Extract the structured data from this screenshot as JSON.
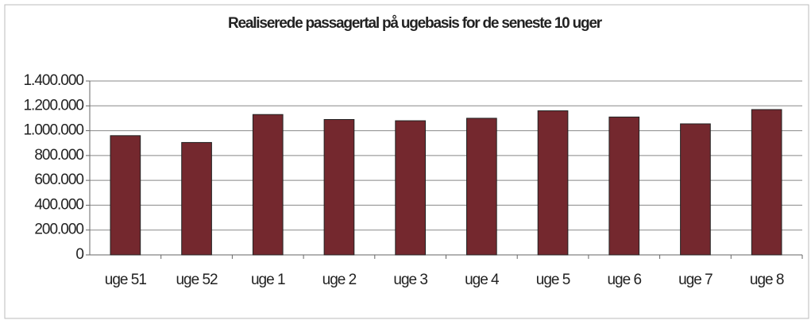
{
  "chart_data": {
    "type": "bar",
    "title": "Realiserede passagertal på ugebasis for de seneste 10 uger",
    "categories": [
      "uge 51",
      "uge 52",
      "uge 1",
      "uge 2",
      "uge 3",
      "uge 4",
      "uge 5",
      "uge 6",
      "uge 7",
      "uge 8"
    ],
    "values": [
      960000,
      905000,
      1130000,
      1090000,
      1080000,
      1100000,
      1160000,
      1110000,
      1055000,
      1170000
    ],
    "color": "#74282e",
    "ylim": [
      0,
      1400000
    ],
    "yticks": [
      0,
      {
        "value": 200000,
        "label": "200.000"
      },
      {
        "value": 400000,
        "label": "400.000"
      },
      {
        "value": 600000,
        "label": "600.000"
      },
      {
        "value": 800000,
        "label": "800.000"
      },
      {
        "value": 1000000,
        "label": "1.000.000"
      },
      {
        "value": 1200000,
        "label": "1.200.000"
      },
      {
        "value": 1400000,
        "label": "1.400.000"
      }
    ],
    "grid": true
  }
}
